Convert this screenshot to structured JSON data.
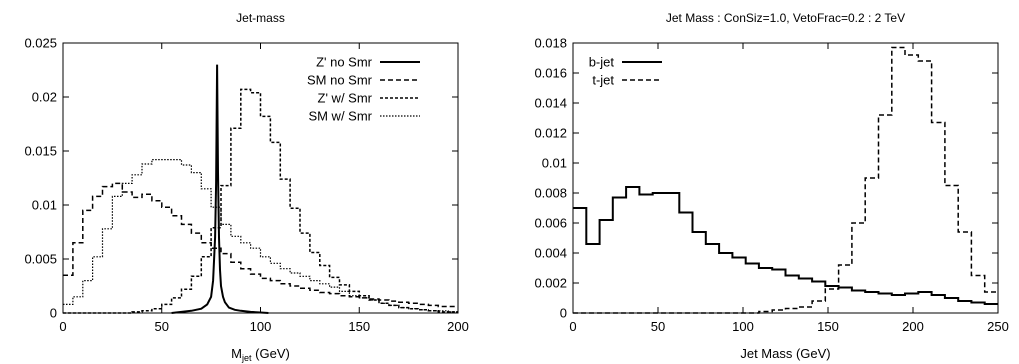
{
  "chart_data": [
    {
      "type": "line",
      "title": "Jet-mass",
      "xlabel_main": "M",
      "xlabel_sub": "jet",
      "xlabel_unit": " (GeV)",
      "ylabel": "",
      "xlim": [
        0,
        200
      ],
      "ylim": [
        0,
        0.025
      ],
      "xticks": [
        0,
        50,
        100,
        150,
        200
      ],
      "xtick_labels": [
        "0",
        "50",
        "100",
        "150",
        "200"
      ],
      "yticks": [
        0,
        0.005,
        0.01,
        0.015,
        0.02,
        0.025
      ],
      "ytick_labels": [
        "0",
        "0.005",
        "0.01",
        "0.015",
        "0.02",
        "0.025"
      ],
      "grid": false,
      "legend_position": "top-right",
      "series": [
        {
          "name": "Z' no Smr",
          "dash": "",
          "width": 2,
          "points": [
            [
              55,
              0
            ],
            [
              60,
              0.0001
            ],
            [
              65,
              0.0002
            ],
            [
              70,
              0.0004
            ],
            [
              73,
              0.0008
            ],
            [
              75,
              0.0015
            ],
            [
              76,
              0.003
            ],
            [
              77,
              0.007
            ],
            [
              77.5,
              0.012
            ],
            [
              78,
              0.023
            ],
            [
              78.5,
              0.013
            ],
            [
              79,
              0.007
            ],
            [
              79.5,
              0.004
            ],
            [
              80,
              0.0025
            ],
            [
              81,
              0.0015
            ],
            [
              82,
              0.001
            ],
            [
              84,
              0.0005
            ],
            [
              87,
              0.0003
            ],
            [
              90,
              0.0002
            ],
            [
              95,
              0.0001
            ],
            [
              100,
              5e-05
            ],
            [
              104,
              0
            ]
          ]
        },
        {
          "name": "SM no Smr",
          "dash": "5,3",
          "width": 1.5,
          "steps": [
            0.0035,
            0.0065,
            0.0095,
            0.0108,
            0.0117,
            0.012,
            0.0112,
            0.0107,
            0.011,
            0.0104,
            0.0098,
            0.009,
            0.0082,
            0.0074,
            0.0065,
            0.006,
            0.0055,
            0.0047,
            0.0041,
            0.0036,
            0.0032,
            0.003,
            0.0027,
            0.0025,
            0.0023,
            0.0021,
            0.0019,
            0.0018,
            0.0016,
            0.0015,
            0.0014,
            0.0013,
            0.0012,
            0.0011,
            0.001,
            0.0009,
            0.0008,
            0.0007,
            0.0006,
            0.0006
          ]
        },
        {
          "name": "Z' w/ Smr",
          "dash": "3,2",
          "width": 1.5,
          "steps": [
            0,
            0,
            0,
            0,
            0,
            0,
            0,
            0.0001,
            0.0002,
            0.0004,
            0.0008,
            0.0014,
            0.0022,
            0.0034,
            0.0052,
            0.0079,
            0.0118,
            0.0171,
            0.0207,
            0.0204,
            0.0182,
            0.0158,
            0.0124,
            0.0097,
            0.0074,
            0.0056,
            0.0044,
            0.0033,
            0.0026,
            0.002,
            0.0016,
            0.0012,
            0.0009,
            0.0007,
            0.0005,
            0.0004,
            0.0003,
            0.0002,
            0.0001,
            0.0001
          ]
        },
        {
          "name": "SM w/ Smr",
          "dash": "1.5,1.5",
          "width": 1.2,
          "steps": [
            0.0008,
            0.0015,
            0.003,
            0.0052,
            0.0078,
            0.0108,
            0.012,
            0.0128,
            0.0138,
            0.0142,
            0.0142,
            0.0142,
            0.0137,
            0.013,
            0.0115,
            0.0098,
            0.0082,
            0.0071,
            0.0065,
            0.006,
            0.0052,
            0.0046,
            0.0041,
            0.0037,
            0.0034,
            0.003,
            0.0027,
            0.0024,
            0.002,
            0.0016,
            0.0014,
            0.0012,
            0.0009,
            0.0007,
            0.0005,
            0.0004,
            0.0003,
            0.0002,
            0.0002,
            0.0001
          ]
        }
      ]
    },
    {
      "type": "line",
      "title": "Jet Mass : ConSiz=1.0, VetoFrac=0.2 : 2 TeV",
      "xlabel": "Jet Mass (GeV)",
      "ylabel": "",
      "xlim": [
        0,
        250
      ],
      "ylim": [
        0,
        0.018
      ],
      "xticks": [
        0,
        50,
        100,
        150,
        200,
        250
      ],
      "xtick_labels": [
        "0",
        "50",
        "100",
        "150",
        "200",
        "250"
      ],
      "yticks": [
        0,
        0.002,
        0.004,
        0.006,
        0.008,
        0.01,
        0.012,
        0.014,
        0.016,
        0.018
      ],
      "ytick_labels": [
        "0",
        "0.002",
        "0.004",
        "0.006",
        "0.008",
        "0.01",
        "0.012",
        "0.014",
        "0.016",
        "0.018"
      ],
      "grid": false,
      "legend_position": "top-left",
      "series": [
        {
          "name": "b-jet",
          "dash": "",
          "width": 2,
          "steps": [
            0.007,
            0.0046,
            0.0062,
            0.0077,
            0.0084,
            0.0079,
            0.008,
            0.008,
            0.0067,
            0.0054,
            0.0046,
            0.004,
            0.0037,
            0.0033,
            0.003,
            0.0029,
            0.0025,
            0.0023,
            0.0021,
            0.0018,
            0.0017,
            0.0015,
            0.0014,
            0.0013,
            0.0012,
            0.0013,
            0.0014,
            0.0012,
            0.001,
            0.0008,
            0.0007,
            0.0006
          ]
        },
        {
          "name": "t-jet",
          "dash": "5,3",
          "width": 1.5,
          "steps": [
            0,
            0,
            0,
            0,
            0,
            0,
            0,
            0,
            0,
            0,
            0,
            0,
            0,
            0,
            0.0001,
            0.0002,
            0.0003,
            0.0004,
            0.0008,
            0.0016,
            0.0032,
            0.006,
            0.009,
            0.0132,
            0.0177,
            0.0172,
            0.0168,
            0.0127,
            0.0085,
            0.0054,
            0.0025,
            0.0014
          ]
        }
      ]
    }
  ]
}
